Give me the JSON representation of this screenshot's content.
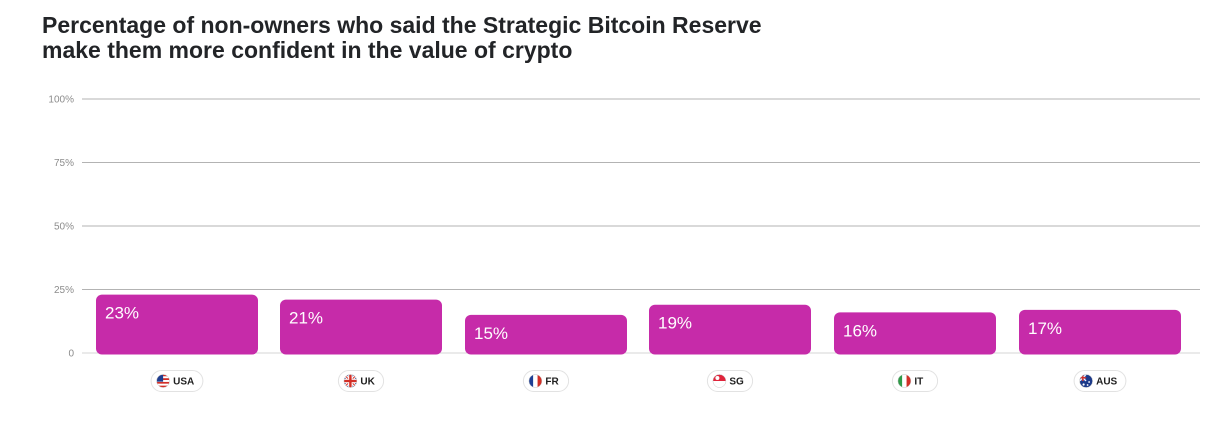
{
  "chart_data": {
    "type": "bar",
    "title": "Percentage of non-owners who said the Strategic Bitcoin Reserve make them more confident in the value of crypto",
    "categories": [
      "USA",
      "UK",
      "FR",
      "SG",
      "IT",
      "AUS"
    ],
    "values": [
      23,
      21,
      15,
      19,
      16,
      17
    ],
    "value_labels": [
      "23%",
      "21%",
      "15%",
      "19%",
      "16%",
      "17%"
    ],
    "flags": [
      "us-flag-icon",
      "uk-flag-icon",
      "france-flag-icon",
      "singapore-flag-icon",
      "italy-flag-icon",
      "australia-flag-icon"
    ],
    "ylim": [
      0,
      100
    ],
    "yticks": [
      0,
      25,
      50,
      75,
      100
    ],
    "ytick_labels": [
      "0",
      "25%",
      "50%",
      "75%",
      "100%"
    ],
    "xlabel": "",
    "ylabel": "",
    "grid": true,
    "legend": "none",
    "bar_color": "#c62ba9",
    "gridline_color": "#9a9a9a"
  }
}
